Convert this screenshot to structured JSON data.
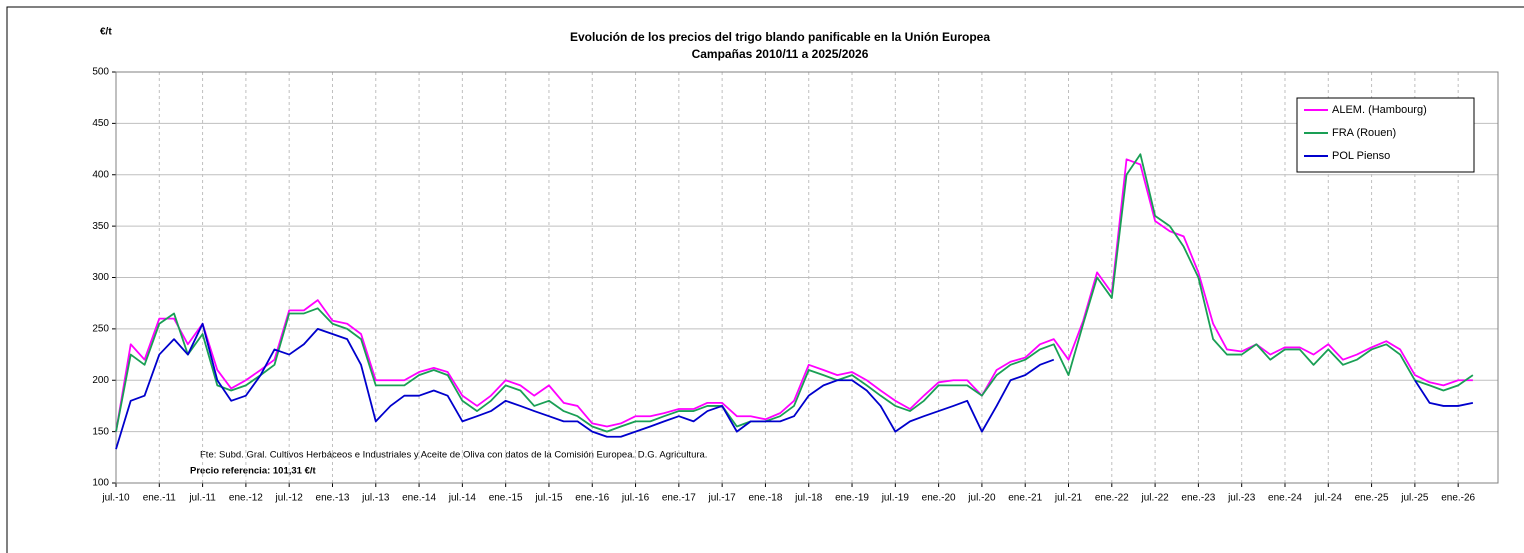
{
  "chart_data": {
    "type": "line",
    "title": "Evolución de los precios del trigo blando panificable en la Unión Europea",
    "subtitle": "Campañas 2010/11 a 2025/2026",
    "y_label": "€/t",
    "source": "Fte: Subd. Gral. Cultivos Herbáceos e Industriales y Aceite de Oliva con datos de la Comisión Europea. D.G. Agricultura.",
    "note": "Precio referencia: 101,31 €/t",
    "x": [
      2010.5,
      2010.67,
      2010.83,
      2011.0,
      2011.17,
      2011.33,
      2011.5,
      2011.67,
      2011.83,
      2012.0,
      2012.17,
      2012.33,
      2012.5,
      2012.67,
      2012.83,
      2013.0,
      2013.17,
      2013.33,
      2013.5,
      2013.67,
      2013.83,
      2014.0,
      2014.17,
      2014.33,
      2014.5,
      2014.67,
      2014.83,
      2015.0,
      2015.17,
      2015.33,
      2015.5,
      2015.67,
      2015.83,
      2016.0,
      2016.17,
      2016.33,
      2016.5,
      2016.67,
      2016.83,
      2017.0,
      2017.17,
      2017.33,
      2017.5,
      2017.67,
      2017.83,
      2018.0,
      2018.17,
      2018.33,
      2018.5,
      2018.67,
      2018.83,
      2019.0,
      2019.17,
      2019.33,
      2019.5,
      2019.67,
      2019.83,
      2020.0,
      2020.17,
      2020.33,
      2020.5,
      2020.67,
      2020.83,
      2021.0,
      2021.17,
      2021.33,
      2021.5,
      2021.67,
      2021.83,
      2022.0,
      2022.17,
      2022.33,
      2022.5,
      2022.67,
      2022.83,
      2023.0,
      2023.17,
      2023.33,
      2023.5,
      2023.67,
      2023.83,
      2024.0,
      2024.17,
      2024.33,
      2024.5,
      2024.67,
      2024.83,
      2025.0,
      2025.17,
      2025.33,
      2025.5,
      2025.67,
      2025.83,
      2026.0,
      2026.17
    ],
    "series": [
      {
        "name": "ALEM. (Hambourg)",
        "color": "#ff00ff",
        "values": [
          150,
          235,
          220,
          260,
          260,
          235,
          255,
          210,
          192,
          200,
          210,
          220,
          268,
          268,
          278,
          258,
          255,
          245,
          200,
          200,
          200,
          208,
          212,
          208,
          185,
          175,
          185,
          200,
          195,
          185,
          195,
          178,
          175,
          158,
          155,
          158,
          165,
          165,
          168,
          172,
          172,
          178,
          178,
          165,
          165,
          162,
          168,
          180,
          215,
          210,
          205,
          208,
          200,
          190,
          180,
          172,
          185,
          198,
          200,
          200,
          185,
          210,
          218,
          222,
          235,
          240,
          220,
          258,
          305,
          285,
          415,
          410,
          355,
          345,
          340,
          305,
          255,
          230,
          228,
          235,
          225,
          232,
          232,
          225,
          235,
          220,
          225,
          232,
          238,
          230,
          205,
          198,
          195,
          200,
          200
        ]
      },
      {
        "name": "FRA (Rouen)",
        "color": "#1a9f55",
        "values": [
          150,
          225,
          215,
          255,
          265,
          225,
          245,
          195,
          190,
          195,
          205,
          215,
          265,
          265,
          270,
          255,
          250,
          240,
          195,
          195,
          195,
          205,
          210,
          205,
          180,
          170,
          180,
          195,
          190,
          175,
          180,
          170,
          165,
          155,
          150,
          155,
          160,
          160,
          165,
          170,
          170,
          175,
          175,
          155,
          160,
          160,
          165,
          175,
          210,
          205,
          200,
          205,
          195,
          185,
          175,
          170,
          180,
          195,
          195,
          195,
          185,
          205,
          215,
          220,
          230,
          235,
          205,
          255,
          300,
          280,
          400,
          420,
          360,
          350,
          330,
          300,
          240,
          225,
          225,
          235,
          220,
          230,
          230,
          215,
          230,
          215,
          220,
          230,
          235,
          225,
          200,
          195,
          190,
          195,
          205
        ]
      },
      {
        "name": "POL  Pienso",
        "color": "#0000cc",
        "values": [
          133,
          180,
          185,
          225,
          240,
          225,
          255,
          200,
          180,
          185,
          205,
          230,
          225,
          235,
          250,
          245,
          240,
          215,
          160,
          175,
          185,
          185,
          190,
          185,
          160,
          165,
          170,
          180,
          175,
          170,
          165,
          160,
          160,
          150,
          145,
          145,
          150,
          155,
          160,
          165,
          160,
          170,
          175,
          150,
          160,
          160,
          160,
          165,
          185,
          195,
          200,
          200,
          190,
          175,
          150,
          160,
          165,
          170,
          175,
          180,
          150,
          175,
          200,
          205,
          215,
          220,
          null,
          null,
          null,
          null,
          null,
          null,
          null,
          null,
          null,
          null,
          null,
          null,
          null,
          null,
          null,
          null,
          null,
          null,
          null,
          null,
          null,
          null,
          null,
          null,
          200,
          178,
          175,
          175,
          178
        ]
      }
    ],
    "xlim": [
      2010.5,
      2026.46
    ],
    "xticks": [
      {
        "value": 2010.5,
        "label": "jul.-10"
      },
      {
        "value": 2011,
        "label": "ene.-11"
      },
      {
        "value": 2011.5,
        "label": "jul.-11"
      },
      {
        "value": 2012,
        "label": "ene.-12"
      },
      {
        "value": 2012.5,
        "label": "jul.-12"
      },
      {
        "value": 2013,
        "label": "ene.-13"
      },
      {
        "value": 2013.5,
        "label": "jul.-13"
      },
      {
        "value": 2014,
        "label": "ene.-14"
      },
      {
        "value": 2014.5,
        "label": "jul.-14"
      },
      {
        "value": 2015,
        "label": "ene.-15"
      },
      {
        "value": 2015.5,
        "label": "jul.-15"
      },
      {
        "value": 2016,
        "label": "ene.-16"
      },
      {
        "value": 2016.5,
        "label": "jul.-16"
      },
      {
        "value": 2017,
        "label": "ene.-17"
      },
      {
        "value": 2017.5,
        "label": "jul.-17"
      },
      {
        "value": 2018,
        "label": "ene.-18"
      },
      {
        "value": 2018.5,
        "label": "jul.-18"
      },
      {
        "value": 2019,
        "label": "ene.-19"
      },
      {
        "value": 2019.5,
        "label": "jul.-19"
      },
      {
        "value": 2020,
        "label": "ene.-20"
      },
      {
        "value": 2020.5,
        "label": "jul.-20"
      },
      {
        "value": 2021,
        "label": "ene.-21"
      },
      {
        "value": 2021.5,
        "label": "jul.-21"
      },
      {
        "value": 2022,
        "label": "ene.-22"
      },
      {
        "value": 2022.5,
        "label": "jul.-22"
      },
      {
        "value": 2023,
        "label": "ene.-23"
      },
      {
        "value": 2023.5,
        "label": "jul.-23"
      },
      {
        "value": 2024,
        "label": "ene.-24"
      },
      {
        "value": 2024.5,
        "label": "jul.-24"
      },
      {
        "value": 2025,
        "label": "ene.-25"
      },
      {
        "value": 2025.5,
        "label": "jul.-25"
      },
      {
        "value": 2026,
        "label": "ene.-26"
      }
    ],
    "ylim": [
      100,
      500
    ],
    "yticks": [
      100,
      150,
      200,
      250,
      300,
      350,
      400,
      450,
      500
    ],
    "grid": true,
    "legend": "upper right"
  }
}
